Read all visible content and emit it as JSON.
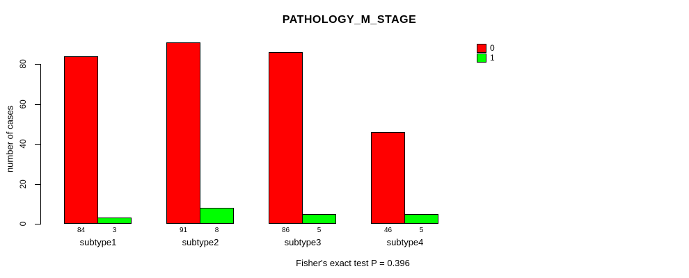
{
  "chart_data": {
    "type": "bar",
    "title": "PATHOLOGY_M_STAGE",
    "xlabel": "",
    "ylabel": "number of cases",
    "categories": [
      "subtype1",
      "subtype2",
      "subtype3",
      "subtype4"
    ],
    "series": [
      {
        "name": "0",
        "color": "#FF0000",
        "values": [
          84,
          91,
          86,
          46
        ]
      },
      {
        "name": "1",
        "color": "#00FF00",
        "values": [
          3,
          8,
          5,
          5
        ]
      }
    ],
    "bar_count_labels": [
      [
        "84",
        "3"
      ],
      [
        "91",
        "8"
      ],
      [
        "86",
        "5"
      ],
      [
        "46",
        "5"
      ]
    ],
    "yticks": [
      0,
      20,
      40,
      60,
      80
    ],
    "ylim": [
      0,
      95
    ],
    "grid": false,
    "legend_position": "top-right",
    "annotation": "Fisher's exact test P = 0.396"
  }
}
